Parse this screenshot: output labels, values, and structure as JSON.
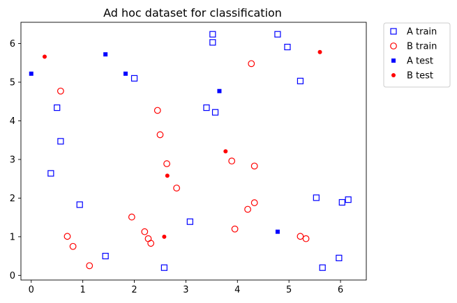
{
  "chart_data": {
    "type": "scatter",
    "title": "Ad hoc dataset for classification",
    "xlabel": "",
    "ylabel": "",
    "xlim": [
      -0.2,
      6.5
    ],
    "ylim": [
      -0.12,
      6.55
    ],
    "xticks": [
      0,
      1,
      2,
      3,
      4,
      5,
      6
    ],
    "yticks": [
      0,
      1,
      2,
      3,
      4,
      5,
      6
    ],
    "grid": false,
    "legend_position": "outside-upper-right",
    "series": [
      {
        "name": "A train",
        "marker": "square-open",
        "color": "#0000ff",
        "points": [
          [
            3.52,
            6.24
          ],
          [
            3.52,
            6.03
          ],
          [
            4.78,
            6.24
          ],
          [
            4.97,
            5.91
          ],
          [
            5.22,
            5.03
          ],
          [
            2.0,
            5.1
          ],
          [
            0.5,
            4.34
          ],
          [
            3.4,
            4.34
          ],
          [
            3.57,
            4.22
          ],
          [
            0.57,
            3.47
          ],
          [
            0.38,
            2.64
          ],
          [
            0.94,
            1.83
          ],
          [
            5.53,
            2.01
          ],
          [
            6.03,
            1.89
          ],
          [
            6.15,
            1.96
          ],
          [
            3.08,
            1.39
          ],
          [
            1.44,
            0.5
          ],
          [
            2.58,
            0.2
          ],
          [
            5.97,
            0.45
          ],
          [
            5.65,
            0.2
          ]
        ]
      },
      {
        "name": "B train",
        "marker": "circle-open",
        "color": "#ff0000",
        "points": [
          [
            4.27,
            5.48
          ],
          [
            0.57,
            4.77
          ],
          [
            2.45,
            4.27
          ],
          [
            2.5,
            3.64
          ],
          [
            2.63,
            2.89
          ],
          [
            3.89,
            2.96
          ],
          [
            4.33,
            2.83
          ],
          [
            2.82,
            2.26
          ],
          [
            4.2,
            1.71
          ],
          [
            4.33,
            1.88
          ],
          [
            1.95,
            1.51
          ],
          [
            3.95,
            1.2
          ],
          [
            2.2,
            1.13
          ],
          [
            2.27,
            0.95
          ],
          [
            2.32,
            0.83
          ],
          [
            0.7,
            1.01
          ],
          [
            0.81,
            0.75
          ],
          [
            1.13,
            0.25
          ],
          [
            5.22,
            1.01
          ],
          [
            5.33,
            0.95
          ]
        ]
      },
      {
        "name": "A test",
        "marker": "square-filled",
        "color": "#0000ff",
        "points": [
          [
            0.0,
            5.22
          ],
          [
            1.44,
            5.72
          ],
          [
            1.83,
            5.22
          ],
          [
            3.65,
            4.77
          ],
          [
            4.78,
            1.13
          ]
        ]
      },
      {
        "name": "B test",
        "marker": "circle-filled",
        "color": "#ff0000",
        "points": [
          [
            0.26,
            5.66
          ],
          [
            5.6,
            5.78
          ],
          [
            3.77,
            3.21
          ],
          [
            2.64,
            2.58
          ],
          [
            2.58,
            1.0
          ]
        ]
      }
    ]
  }
}
